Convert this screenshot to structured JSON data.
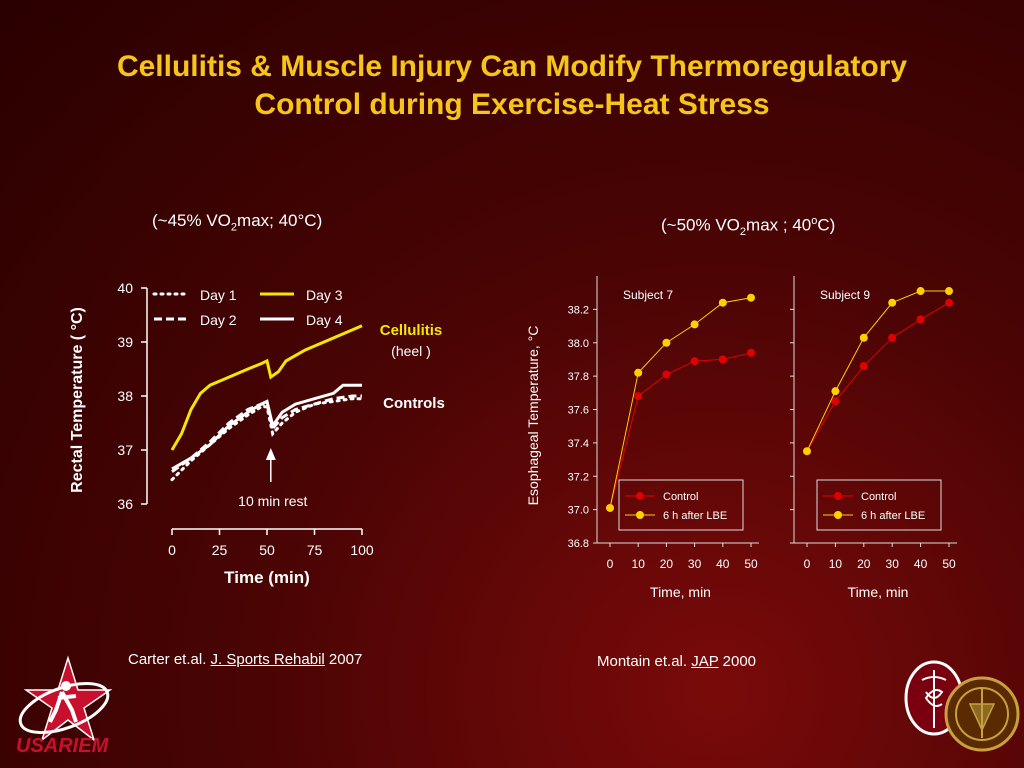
{
  "title": {
    "line1": "Cellulitis & Muscle Injury Can Modify Thermoregulatory",
    "line2": "Control during Exercise-Heat Stress"
  },
  "left_condition": {
    "pre": "(~45% VO",
    "sub": "2",
    "post": "max; 40°C)"
  },
  "right_condition": {
    "pre": "(~50% VO",
    "sub": "2",
    "post": "max ; 40",
    "sup": "o",
    "end": "C)"
  },
  "left_citation": {
    "authors": "Carter et.al. ",
    "journal": "J. Sports Rehabil",
    "year": " 2007"
  },
  "right_citation": {
    "authors": "Montain et.al. ",
    "journal": "JAP",
    "year": " 2000"
  },
  "logo_text": "USARIEM",
  "colors": {
    "yellow": "#f5e600",
    "title": "#f5c518",
    "red": "#e00000",
    "gold": "#ffd000"
  },
  "chart_data": [
    {
      "type": "line",
      "ylabel": "Rectal Temperature ( °C)",
      "xlabel": "Time (min)",
      "xlim": [
        0,
        100
      ],
      "ylim": [
        36,
        40
      ],
      "x_ticks": [
        0,
        25,
        50,
        75,
        100
      ],
      "y_ticks": [
        36,
        37,
        38,
        39,
        40
      ],
      "annotations": {
        "cellulitis": "Cellulitis",
        "heel": "(heel )",
        "controls": "Controls",
        "rest": "10 min rest"
      },
      "series": [
        {
          "name": "Day 1",
          "style": "dotted",
          "color": "#ffffff",
          "points": [
            [
              0,
              36.45
            ],
            [
              10,
              36.8
            ],
            [
              20,
              37.1
            ],
            [
              30,
              37.4
            ],
            [
              40,
              37.65
            ],
            [
              47,
              37.8
            ],
            [
              50,
              37.8
            ],
            [
              53,
              37.3
            ],
            [
              58,
              37.5
            ],
            [
              65,
              37.7
            ],
            [
              75,
              37.85
            ],
            [
              85,
              37.9
            ],
            [
              95,
              37.95
            ],
            [
              100,
              37.95
            ]
          ]
        },
        {
          "name": "Day 2",
          "style": "dashed",
          "color": "#ffffff",
          "points": [
            [
              0,
              36.6
            ],
            [
              10,
              36.85
            ],
            [
              20,
              37.15
            ],
            [
              30,
              37.5
            ],
            [
              40,
              37.75
            ],
            [
              47,
              37.85
            ],
            [
              50,
              37.85
            ],
            [
              53,
              37.4
            ],
            [
              58,
              37.6
            ],
            [
              65,
              37.75
            ],
            [
              75,
              37.85
            ],
            [
              85,
              37.95
            ],
            [
              95,
              38.0
            ],
            [
              100,
              38.0
            ]
          ]
        },
        {
          "name": "Day 3",
          "style": "solid",
          "color": "#f5e600",
          "points": [
            [
              0,
              37.0
            ],
            [
              5,
              37.3
            ],
            [
              10,
              37.75
            ],
            [
              15,
              38.05
            ],
            [
              20,
              38.2
            ],
            [
              30,
              38.35
            ],
            [
              40,
              38.5
            ],
            [
              47,
              38.6
            ],
            [
              50,
              38.65
            ],
            [
              52,
              38.35
            ],
            [
              56,
              38.45
            ],
            [
              60,
              38.65
            ],
            [
              70,
              38.85
            ],
            [
              80,
              39.0
            ],
            [
              90,
              39.15
            ],
            [
              100,
              39.3
            ]
          ]
        },
        {
          "name": "Day 4",
          "style": "solid",
          "color": "#ffffff",
          "points": [
            [
              0,
              36.65
            ],
            [
              10,
              36.85
            ],
            [
              20,
              37.1
            ],
            [
              30,
              37.45
            ],
            [
              40,
              37.7
            ],
            [
              47,
              37.85
            ],
            [
              50,
              37.9
            ],
            [
              53,
              37.45
            ],
            [
              58,
              37.7
            ],
            [
              65,
              37.85
            ],
            [
              75,
              37.95
            ],
            [
              85,
              38.05
            ],
            [
              90,
              38.2
            ],
            [
              100,
              38.2
            ]
          ]
        }
      ]
    },
    {
      "type": "line",
      "title": "Subject 7",
      "ylabel": "Esophageal Temperature, °C",
      "xlabel": "Time, min",
      "xlim": [
        0,
        50
      ],
      "ylim": [
        36.8,
        38.4
      ],
      "x_ticks": [
        0,
        10,
        20,
        30,
        40,
        50
      ],
      "y_ticks": [
        "36.8",
        "37.0",
        "37.2",
        "37.4",
        "37.6",
        "37.8",
        "38.0",
        "38.2"
      ],
      "series": [
        {
          "name": "Control",
          "color": "#e00000",
          "x": [
            0,
            10,
            20,
            30,
            40,
            50
          ],
          "y": [
            37.01,
            37.68,
            37.81,
            37.89,
            37.9,
            37.94
          ]
        },
        {
          "name": "6 h after LBE",
          "color": "#ffd000",
          "x": [
            0,
            10,
            20,
            30,
            40,
            50
          ],
          "y": [
            37.01,
            37.82,
            38.0,
            38.11,
            38.24,
            38.27
          ]
        }
      ]
    },
    {
      "type": "line",
      "title": "Subject 9",
      "xlabel": "Time, min",
      "xlim": [
        0,
        50
      ],
      "ylim": [
        36.8,
        38.4
      ],
      "x_ticks": [
        0,
        10,
        20,
        30,
        40,
        50
      ],
      "series": [
        {
          "name": "Control",
          "color": "#e00000",
          "x": [
            0,
            10,
            20,
            30,
            40,
            50
          ],
          "y": [
            37.35,
            37.65,
            37.86,
            38.03,
            38.14,
            38.24
          ]
        },
        {
          "name": "6 h after LBE",
          "color": "#ffd000",
          "x": [
            0,
            10,
            20,
            30,
            40,
            50
          ],
          "y": [
            37.35,
            37.71,
            38.03,
            38.24,
            38.31,
            38.31
          ]
        }
      ]
    }
  ]
}
